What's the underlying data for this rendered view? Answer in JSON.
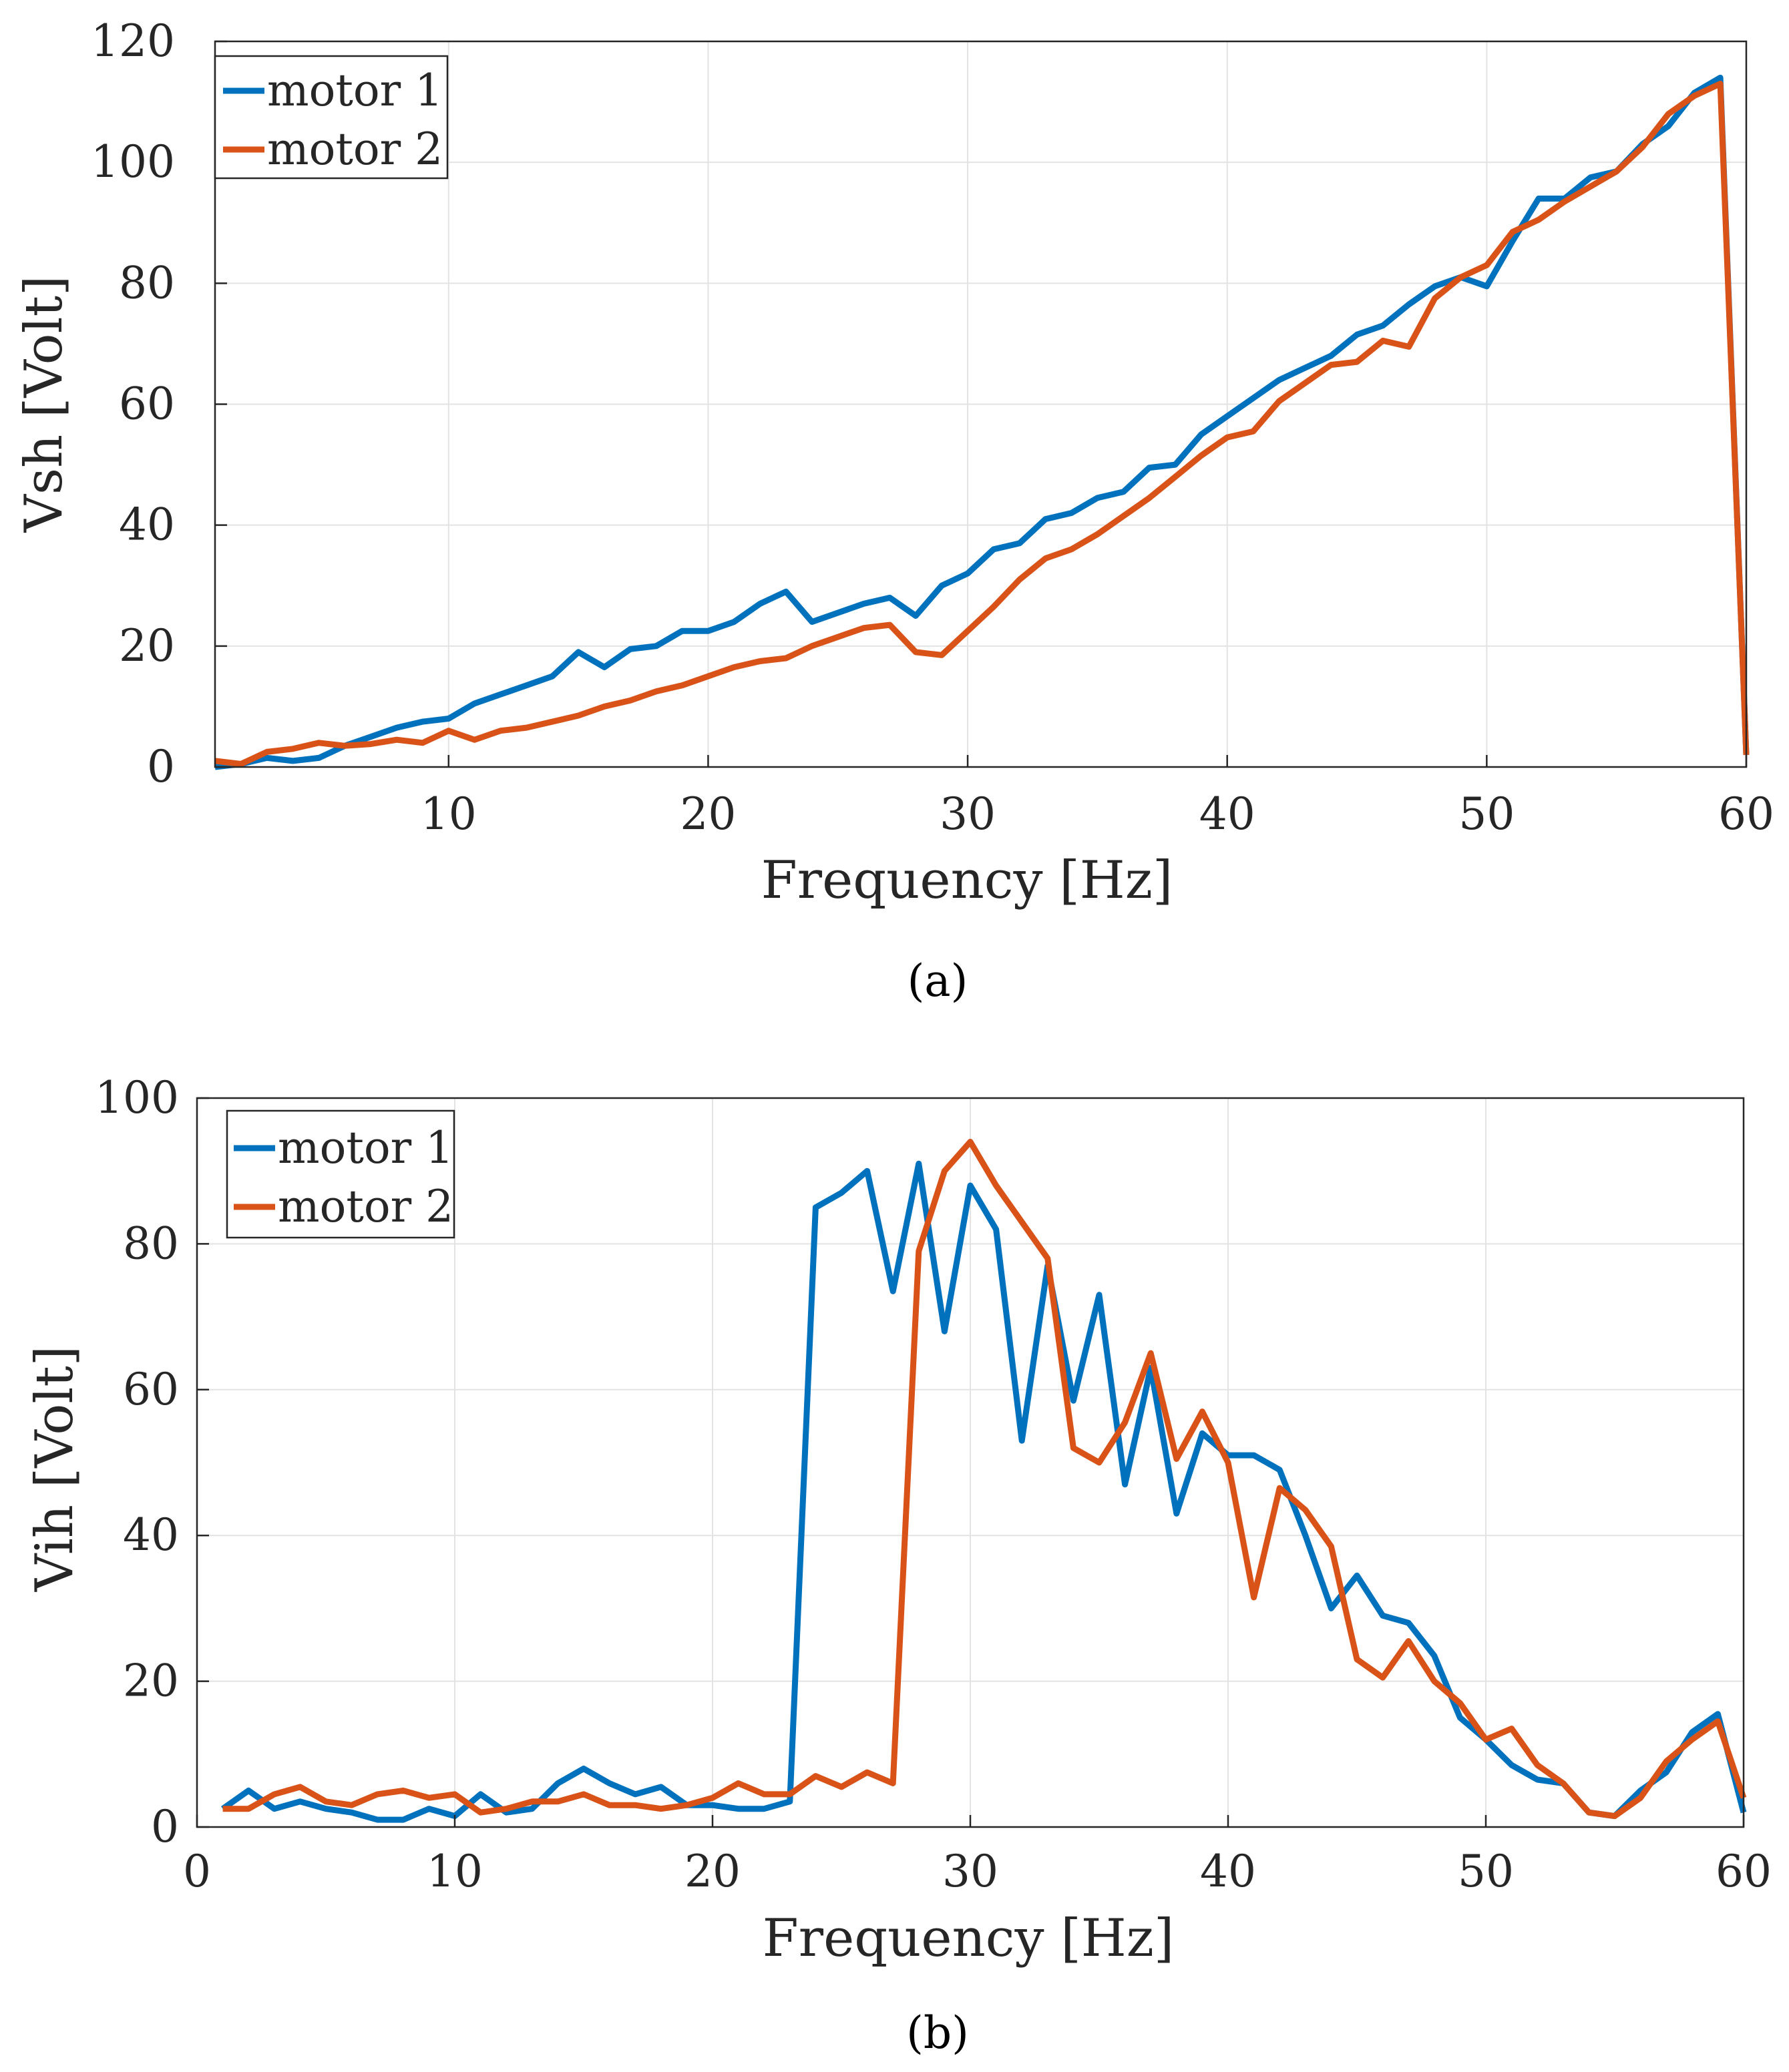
{
  "chart_data": [
    {
      "panel": "a",
      "caption": "(a)",
      "type": "line",
      "xlabel": "Frequency [Hz]",
      "ylabel": "Vsh [Volt]",
      "xlim": [
        1,
        60
      ],
      "ylim": [
        0,
        120
      ],
      "xticks": [
        10,
        20,
        30,
        40,
        50,
        60
      ],
      "yticks": [
        0,
        20,
        40,
        60,
        80,
        100,
        120
      ],
      "grid": true,
      "legend": "top-left",
      "series": [
        {
          "name": "motor 1",
          "color": "#0072BD",
          "x": [
            1,
            2,
            3,
            4,
            5,
            6,
            7,
            8,
            9,
            10,
            11,
            12,
            13,
            14,
            15,
            16,
            17,
            18,
            19,
            20,
            21,
            22,
            23,
            24,
            25,
            26,
            27,
            28,
            29,
            30,
            31,
            32,
            33,
            34,
            35,
            36,
            37,
            38,
            39,
            40,
            41,
            42,
            43,
            44,
            45,
            46,
            47,
            48,
            49,
            50,
            51,
            52,
            53,
            54,
            55,
            56,
            57,
            58,
            59,
            60
          ],
          "values": [
            0,
            0.5,
            1.5,
            1,
            1.5,
            3.5,
            5,
            6.5,
            7.5,
            8,
            10.5,
            12,
            13.5,
            15,
            19,
            16.5,
            19.5,
            20,
            22.5,
            22.5,
            24,
            27,
            29,
            24,
            25.5,
            27,
            28,
            25,
            30,
            32,
            36,
            37,
            41,
            42,
            44.5,
            45.5,
            49.5,
            50,
            55,
            58,
            61,
            64,
            66,
            68,
            71.5,
            73,
            76.5,
            79.5,
            81,
            79.5,
            87,
            94,
            94,
            97.5,
            98.5,
            103,
            106,
            111.5,
            114,
            2
          ]
        },
        {
          "name": "motor 2",
          "color": "#D95319",
          "x": [
            1,
            2,
            3,
            4,
            5,
            6,
            7,
            8,
            9,
            10,
            11,
            12,
            13,
            14,
            15,
            16,
            17,
            18,
            19,
            20,
            21,
            22,
            23,
            24,
            25,
            26,
            27,
            28,
            29,
            30,
            31,
            32,
            33,
            34,
            35,
            36,
            37,
            38,
            39,
            40,
            41,
            42,
            43,
            44,
            45,
            46,
            47,
            48,
            49,
            50,
            51,
            52,
            53,
            54,
            55,
            56,
            57,
            58,
            59,
            60
          ],
          "values": [
            1,
            0.5,
            2.5,
            3,
            4,
            3.5,
            3.8,
            4.5,
            4,
            6,
            4.5,
            6,
            6.5,
            7.5,
            8.5,
            10,
            11,
            12.5,
            13.5,
            15,
            16.5,
            17.5,
            18,
            20,
            21.5,
            23,
            23.5,
            19,
            18.5,
            22.5,
            26.5,
            31,
            34.5,
            36,
            38.5,
            41.5,
            44.5,
            48,
            51.5,
            54.5,
            55.5,
            60.5,
            63.5,
            66.5,
            67,
            70.5,
            69.5,
            77.5,
            81,
            83,
            88.5,
            90.5,
            93.5,
            96,
            98.5,
            102.5,
            108,
            111,
            113,
            2
          ]
        }
      ]
    },
    {
      "panel": "b",
      "caption": "(b)",
      "type": "line",
      "xlabel": "Frequency [Hz]",
      "ylabel": "Vih [Volt]",
      "xlim": [
        0,
        60
      ],
      "ylim": [
        0,
        100
      ],
      "xticks": [
        0,
        10,
        20,
        30,
        40,
        50,
        60
      ],
      "yticks": [
        0,
        20,
        40,
        60,
        80,
        100
      ],
      "grid": true,
      "legend": "top-left",
      "series": [
        {
          "name": "motor 1",
          "color": "#0072BD",
          "x": [
            1,
            2,
            3,
            4,
            5,
            6,
            7,
            8,
            9,
            10,
            11,
            12,
            13,
            14,
            15,
            16,
            17,
            18,
            19,
            20,
            21,
            22,
            23,
            24,
            25,
            26,
            27,
            28,
            29,
            30,
            31,
            32,
            33,
            34,
            35,
            36,
            37,
            38,
            39,
            40,
            41,
            42,
            43,
            44,
            45,
            46,
            47,
            48,
            49,
            50,
            51,
            52,
            53,
            54,
            55,
            56,
            57,
            58,
            59,
            60
          ],
          "values": [
            2.5,
            5,
            2.5,
            3.5,
            2.5,
            2,
            1,
            1,
            2.5,
            1.5,
            4.5,
            2,
            2.5,
            6,
            8,
            6,
            4.5,
            5.5,
            3,
            3,
            2.5,
            2.5,
            3.5,
            85,
            87,
            90,
            73.5,
            91,
            68,
            88,
            82,
            53,
            77,
            58.5,
            73,
            47,
            63,
            43,
            54,
            51,
            51,
            49,
            40,
            30,
            34.5,
            29,
            28,
            23.5,
            15,
            12,
            8.5,
            6.5,
            6,
            2,
            1.5,
            5,
            7.5,
            13,
            15.5,
            2
          ]
        },
        {
          "name": "motor 2",
          "color": "#D95319",
          "x": [
            1,
            2,
            3,
            4,
            5,
            6,
            7,
            8,
            9,
            10,
            11,
            12,
            13,
            14,
            15,
            16,
            17,
            18,
            19,
            20,
            21,
            22,
            23,
            24,
            25,
            26,
            27,
            28,
            29,
            30,
            31,
            32,
            33,
            34,
            35,
            36,
            37,
            38,
            39,
            40,
            41,
            42,
            43,
            44,
            45,
            46,
            47,
            48,
            49,
            50,
            51,
            52,
            53,
            54,
            55,
            56,
            57,
            58,
            59,
            60
          ],
          "values": [
            2.5,
            2.5,
            4.5,
            5.5,
            3.5,
            3,
            4.5,
            5,
            4,
            4.5,
            2,
            2.5,
            3.5,
            3.5,
            4.5,
            3,
            3,
            2.5,
            3,
            4,
            6,
            4.5,
            4.5,
            7,
            5.5,
            7.5,
            6,
            79,
            90,
            94,
            88,
            83,
            78,
            52,
            50,
            55.5,
            65,
            50.5,
            57,
            50,
            31.5,
            46.5,
            43.5,
            38.5,
            23,
            20.5,
            25.5,
            20,
            17,
            12,
            13.5,
            8.5,
            6,
            2,
            1.5,
            4,
            9,
            12,
            14.5,
            4
          ]
        }
      ]
    }
  ]
}
